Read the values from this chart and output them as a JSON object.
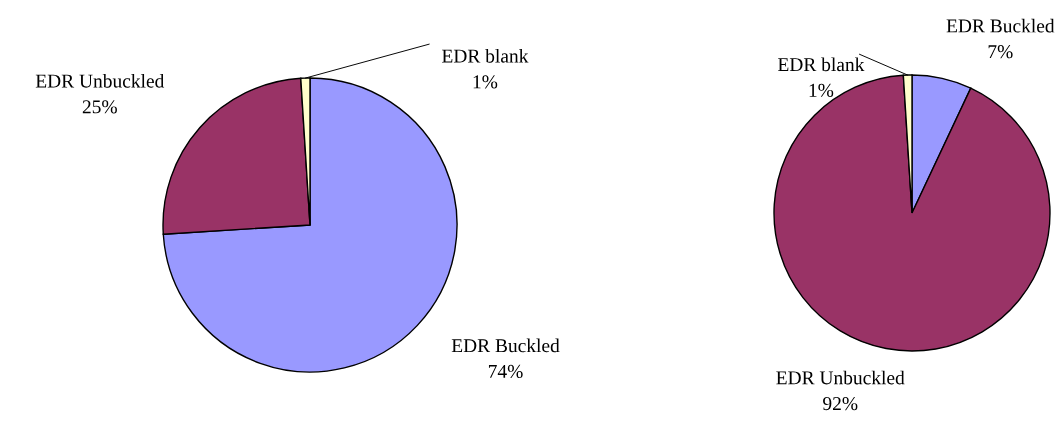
{
  "chart_data": [
    {
      "type": "pie",
      "categories": [
        "EDR Buckled",
        "EDR Unbuckled",
        "EDR blank"
      ],
      "values": [
        74,
        25,
        1
      ],
      "value_labels": [
        "74%",
        "25%",
        "1%"
      ],
      "colors": [
        "#9999ff",
        "#993366",
        "#ffffcc"
      ]
    },
    {
      "type": "pie",
      "categories": [
        "EDR Buckled",
        "EDR Unbuckled",
        "EDR blank"
      ],
      "values": [
        7,
        92,
        1
      ],
      "value_labels": [
        "7%",
        "92%",
        "1%"
      ],
      "colors": [
        "#9999ff",
        "#993366",
        "#ffffcc"
      ]
    }
  ]
}
